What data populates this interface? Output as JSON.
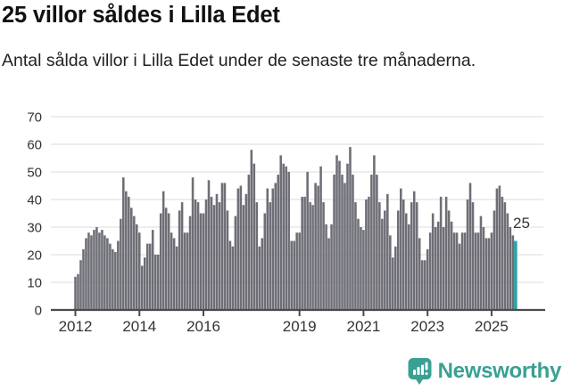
{
  "header": {
    "title": "25 villor såldes i Lilla Edet",
    "subtitle": "Antal sålda villor i Lilla Edet under de senaste tre månaderna."
  },
  "chart_data": {
    "type": "bar",
    "title": "25 villor såldes i Lilla Edet",
    "xlabel": "",
    "ylabel": "",
    "ylim": [
      0,
      70
    ],
    "yticks": [
      0,
      10,
      20,
      30,
      40,
      50,
      60,
      70
    ],
    "grid": true,
    "xticks": [
      {
        "label": "2012",
        "month_index": 0
      },
      {
        "label": "2014",
        "month_index": 24
      },
      {
        "label": "2016",
        "month_index": 48
      },
      {
        "label": "2019",
        "month_index": 84
      },
      {
        "label": "2021",
        "month_index": 108
      },
      {
        "label": "2023",
        "month_index": 132
      },
      {
        "label": "2025",
        "month_index": 156
      }
    ],
    "values": [
      12,
      13,
      18,
      22,
      26,
      28,
      27,
      29,
      30,
      28,
      29,
      27,
      26,
      24,
      22,
      21,
      25,
      33,
      48,
      43,
      41,
      37,
      34,
      31,
      28,
      16,
      19,
      24,
      24,
      29,
      20,
      20,
      35,
      43,
      37,
      35,
      28,
      26,
      23,
      36,
      39,
      28,
      28,
      34,
      48,
      40,
      39,
      35,
      35,
      40,
      47,
      41,
      38,
      42,
      39,
      46,
      46,
      36,
      25,
      23,
      34,
      44,
      45,
      38,
      42,
      49,
      58,
      53,
      39,
      23,
      26,
      35,
      44,
      39,
      44,
      46,
      49,
      56,
      53,
      52,
      50,
      25,
      25,
      28,
      28,
      41,
      41,
      50,
      39,
      38,
      46,
      45,
      52,
      39,
      31,
      26,
      31,
      49,
      56,
      54,
      49,
      46,
      53,
      59,
      49,
      39,
      33,
      30,
      29,
      40,
      41,
      49,
      56,
      49,
      39,
      33,
      36,
      42,
      27,
      19,
      23,
      36,
      44,
      40,
      35,
      31,
      39,
      43,
      39,
      26,
      18,
      18,
      22,
      28,
      35,
      30,
      32,
      41,
      30,
      41,
      36,
      32,
      28,
      28,
      24,
      28,
      28,
      40,
      46,
      39,
      28,
      28,
      34,
      30,
      26,
      26,
      28,
      36,
      44,
      45,
      41,
      39,
      35,
      30,
      27,
      25
    ],
    "highlight": {
      "index": 165,
      "value": 25,
      "label": "25",
      "color": "#2ea3a3"
    },
    "bar_color": "#6e6e76",
    "grid_color": "#e2e2e2",
    "axis_color": "#4a4a4a",
    "text_color": "#333333",
    "legend": "none"
  },
  "branding": {
    "logo_text": "Newsworthy",
    "color": "#3aa093"
  }
}
